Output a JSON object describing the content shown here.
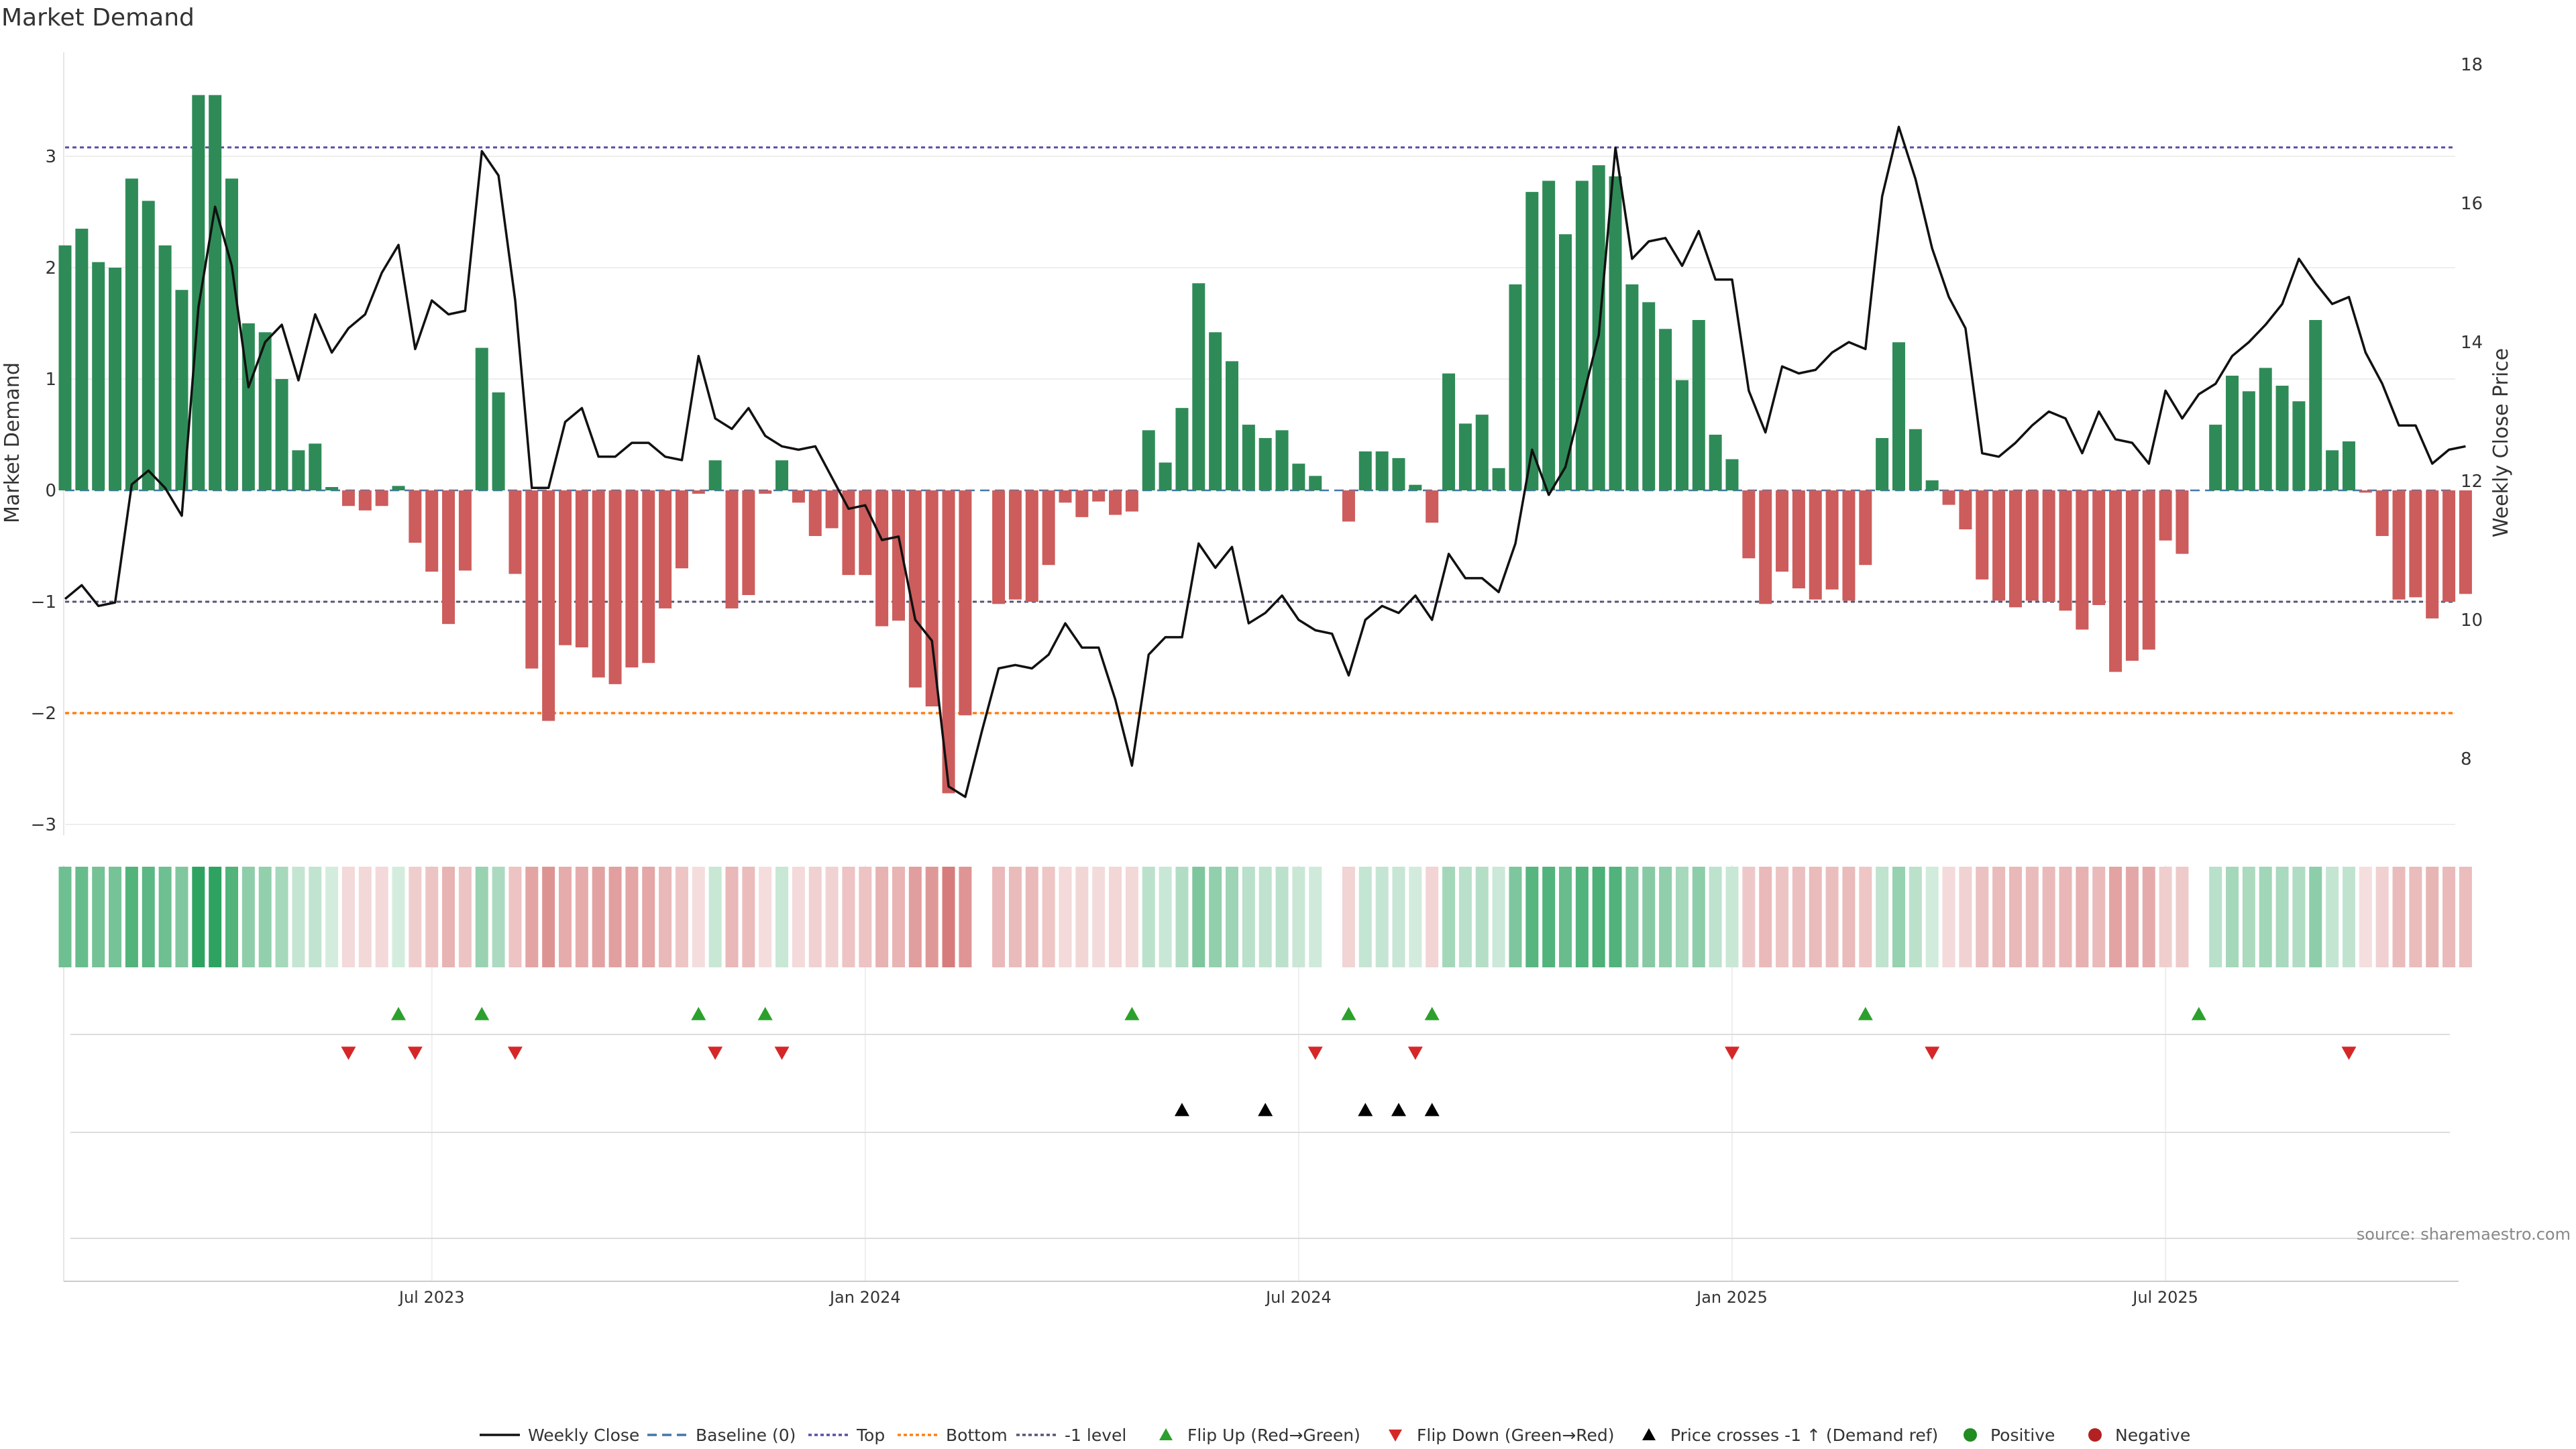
{
  "title": "Market Demand",
  "source": "source: sharemaestro.com",
  "colors": {
    "positive": "#2e8b57",
    "negative": "#cd5c5c",
    "price": "#111111",
    "top": "#5a4fa6",
    "bottom": "#ff7f0e",
    "neg1": "#555577",
    "flip_up": "#2ca02c",
    "flip_down": "#d62728",
    "cross": "#000000",
    "pos_dot": "#228b22",
    "neg_dot": "#b22222"
  },
  "chart_data": {
    "type": "bar",
    "title": "Market Demand",
    "ylabel": "Market Demand",
    "y2label": "Weekly Close Price",
    "ylim": [
      -3.0,
      3.9
    ],
    "y2lim": [
      7.0,
      18.2
    ],
    "yticks": [
      "−3",
      "−2",
      "−1",
      "0",
      "1",
      "2",
      "3"
    ],
    "y2ticks": [
      "8",
      "10",
      "12",
      "14",
      "16",
      "18"
    ],
    "x_labels": [
      "Jul 2023",
      "Jan 2024",
      "Jul 2024",
      "Jan 2025",
      "Jul 2025"
    ],
    "x_label_weeks": [
      22,
      48,
      74,
      100,
      126
    ],
    "levels": {
      "top": 3.08,
      "bottom": -2.0,
      "minus_one": -1.0,
      "baseline": 0
    },
    "series": [
      {
        "name": "Market Demand",
        "values": [
          2.2,
          2.35,
          2.05,
          2.0,
          2.8,
          2.6,
          2.2,
          1.8,
          3.55,
          3.55,
          2.8,
          1.5,
          1.42,
          1.0,
          0.36,
          0.42,
          0.03,
          -0.14,
          -0.18,
          -0.14,
          0.04,
          -0.47,
          -0.73,
          -1.2,
          -0.72,
          1.28,
          0.88,
          -0.75,
          -1.6,
          -2.07,
          -1.39,
          -1.41,
          -1.68,
          -1.74,
          -1.59,
          -1.55,
          -1.06,
          -0.7,
          -0.03,
          0.27,
          -1.06,
          -0.94,
          -0.03,
          0.27,
          -0.11,
          -0.41,
          -0.34,
          -0.76,
          -0.76,
          -1.22,
          -1.17,
          -1.77,
          -1.94,
          -2.72,
          -2.02,
          0,
          -1.02,
          -0.98,
          -1.0,
          -0.67,
          -0.11,
          -0.24,
          -0.1,
          -0.22,
          -0.19,
          0.54,
          0.25,
          0.74,
          1.86,
          1.42,
          1.16,
          0.59,
          0.47,
          0.54,
          0.24,
          0.13,
          0,
          -0.28,
          0.35,
          0.35,
          0.29,
          0.05,
          -0.29,
          1.05,
          0.6,
          0.68,
          0.2,
          1.85,
          2.68,
          2.78,
          2.3,
          2.78,
          2.92,
          2.82,
          1.85,
          1.69,
          1.45,
          0.99,
          1.53,
          0.5,
          0.28,
          -0.61,
          -1.02,
          -0.73,
          -0.88,
          -0.98,
          -0.89,
          -0.99,
          -0.67,
          0.47,
          1.33,
          0.55,
          0.09,
          -0.13,
          -0.35,
          -0.8,
          -0.99,
          -1.05,
          -0.99,
          -1.0,
          -1.08,
          -1.25,
          -1.03,
          -1.63,
          -1.53,
          -1.43,
          -0.45,
          -0.57,
          0,
          0.59,
          1.03,
          0.89,
          1.1,
          0.94,
          0.8,
          1.53,
          0.36,
          0.44,
          -0.02,
          -0.41,
          -0.98,
          -0.96,
          -1.15,
          -1.0,
          -0.93
        ]
      },
      {
        "name": "Weekly Close",
        "values": [
          10.3,
          10.5,
          10.2,
          10.25,
          11.95,
          12.15,
          11.9,
          11.5,
          14.5,
          15.95,
          15.1,
          13.35,
          14.0,
          14.25,
          13.45,
          14.4,
          13.85,
          14.2,
          14.4,
          15.0,
          15.4,
          13.9,
          14.6,
          14.4,
          14.45,
          16.75,
          16.4,
          14.6,
          11.9,
          11.9,
          12.85,
          13.05,
          12.35,
          12.35,
          12.55,
          12.55,
          12.35,
          12.3,
          13.8,
          12.9,
          12.75,
          13.05,
          12.65,
          12.5,
          12.45,
          12.5,
          12.05,
          11.6,
          11.65,
          11.15,
          11.2,
          10.0,
          9.7,
          7.6,
          7.45,
          8.4,
          9.3,
          9.35,
          9.3,
          9.5,
          9.95,
          9.6,
          9.6,
          8.85,
          7.9,
          9.5,
          9.75,
          9.75,
          11.1,
          10.75,
          11.05,
          9.95,
          10.1,
          10.35,
          10.0,
          9.85,
          9.8,
          9.2,
          10.0,
          10.2,
          10.1,
          10.35,
          10.0,
          10.95,
          10.6,
          10.6,
          10.4,
          11.1,
          12.45,
          11.8,
          12.2,
          13.15,
          14.1,
          16.8,
          15.2,
          15.45,
          15.5,
          15.1,
          15.6,
          14.9,
          14.9,
          13.3,
          12.7,
          13.65,
          13.55,
          13.6,
          13.85,
          14.0,
          13.9,
          16.1,
          17.1,
          16.35,
          15.35,
          14.65,
          14.2,
          12.4,
          12.35,
          12.55,
          12.8,
          13.0,
          12.9,
          12.4,
          13.0,
          12.6,
          12.55,
          12.25,
          13.3,
          12.9,
          13.25,
          13.4,
          13.8,
          14.0,
          14.25,
          14.55,
          15.2,
          14.85,
          14.55,
          14.65,
          13.85,
          13.4,
          12.8,
          12.8,
          12.25,
          12.45,
          12.5
        ]
      }
    ],
    "flip_up_weeks": [
      20,
      25,
      38,
      42,
      64,
      77,
      82,
      108,
      128
    ],
    "flip_down_weeks": [
      17,
      21,
      27,
      39,
      43,
      75,
      81,
      100,
      112,
      137
    ],
    "cross_weeks": [
      67,
      72,
      78,
      80,
      82
    ],
    "legend": [
      "Weekly Close",
      "Baseline (0)",
      "Top",
      "Bottom",
      "-1 level",
      "Flip Up (Red→Green)",
      "Flip Down (Green→Red)",
      "Price crosses -1 ↑ (Demand ref)",
      "Positive",
      "Negative"
    ],
    "legend_placement": "bottom-center"
  }
}
